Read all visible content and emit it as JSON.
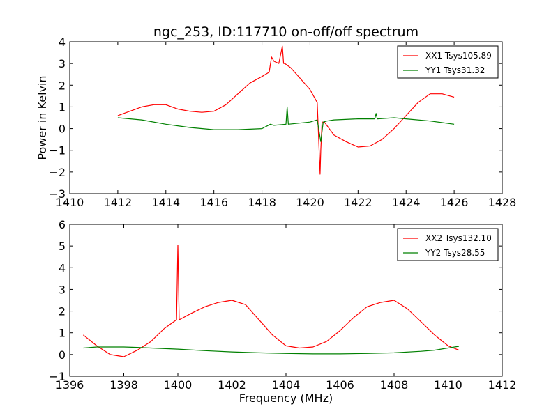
{
  "chart_data": [
    {
      "type": "line",
      "title": "ngc_253, ID:117710 on-off/off spectrum",
      "ylabel": "Power in Kelvin",
      "xlabel": "",
      "xlim": [
        1410,
        1428
      ],
      "ylim": [
        -3,
        4
      ],
      "xticks": [
        1410,
        1412,
        1414,
        1416,
        1418,
        1420,
        1422,
        1424,
        1426,
        1428
      ],
      "yticks": [
        -3,
        -2,
        -1,
        0,
        1,
        2,
        3,
        4
      ],
      "legend_position": "top-right",
      "series": [
        {
          "name": "XX1 Tsys105.89",
          "color": "#ff0000",
          "x": [
            1412.0,
            1412.5,
            1413.0,
            1413.5,
            1414.0,
            1414.5,
            1415.0,
            1415.5,
            1416.0,
            1416.5,
            1417.0,
            1417.5,
            1418.0,
            1418.3,
            1418.4,
            1418.5,
            1418.7,
            1418.85,
            1418.9,
            1418.95,
            1419.2,
            1419.6,
            1420.0,
            1420.3,
            1420.42,
            1420.45,
            1420.5,
            1420.6,
            1420.8,
            1421.0,
            1421.5,
            1422.0,
            1422.5,
            1423.0,
            1423.5,
            1424.0,
            1424.5,
            1425.0,
            1425.5,
            1426.0
          ],
          "y": [
            0.6,
            0.8,
            1.0,
            1.1,
            1.1,
            0.9,
            0.8,
            0.75,
            0.8,
            1.1,
            1.6,
            2.1,
            2.4,
            2.6,
            3.3,
            3.1,
            3.0,
            3.8,
            3.0,
            3.0,
            2.8,
            2.3,
            1.8,
            1.2,
            -2.1,
            -1.0,
            0.3,
            0.3,
            0.0,
            -0.3,
            -0.6,
            -0.85,
            -0.8,
            -0.5,
            0.0,
            0.6,
            1.2,
            1.6,
            1.6,
            1.45
          ]
        },
        {
          "name": "YY1 Tsys31.32",
          "color": "#008000",
          "x": [
            1412.0,
            1413.0,
            1414.0,
            1415.0,
            1416.0,
            1417.0,
            1418.0,
            1418.35,
            1418.5,
            1419.0,
            1419.05,
            1419.1,
            1420.0,
            1420.3,
            1420.45,
            1420.55,
            1420.7,
            1421.0,
            1422.0,
            1422.7,
            1422.75,
            1422.8,
            1423.5,
            1424.0,
            1425.0,
            1426.0
          ],
          "y": [
            0.5,
            0.4,
            0.2,
            0.05,
            -0.05,
            -0.05,
            0.0,
            0.2,
            0.15,
            0.2,
            1.0,
            0.2,
            0.3,
            0.4,
            -0.6,
            0.3,
            0.35,
            0.4,
            0.45,
            0.45,
            0.7,
            0.45,
            0.5,
            0.45,
            0.35,
            0.2
          ]
        }
      ]
    },
    {
      "type": "line",
      "title": "",
      "xlabel": "Frequency (MHz)",
      "ylabel": "",
      "xlim": [
        1396,
        1412
      ],
      "ylim": [
        -1,
        6
      ],
      "xticks": [
        1396,
        1398,
        1400,
        1402,
        1404,
        1406,
        1408,
        1410,
        1412
      ],
      "yticks": [
        -1,
        0,
        1,
        2,
        3,
        4,
        5,
        6
      ],
      "legend_position": "top-right",
      "series": [
        {
          "name": "XX2 Tsys132.10",
          "color": "#ff0000",
          "x": [
            1396.5,
            1397.0,
            1397.5,
            1398.0,
            1398.5,
            1399.0,
            1399.5,
            1399.95,
            1400.0,
            1400.05,
            1400.5,
            1401.0,
            1401.5,
            1402.0,
            1402.5,
            1403.0,
            1403.5,
            1404.0,
            1404.5,
            1405.0,
            1405.5,
            1406.0,
            1406.5,
            1407.0,
            1407.5,
            1408.0,
            1408.5,
            1409.0,
            1409.5,
            1410.0,
            1410.4
          ],
          "y": [
            0.9,
            0.4,
            0.0,
            -0.1,
            0.2,
            0.6,
            1.2,
            1.6,
            5.05,
            1.6,
            1.9,
            2.2,
            2.4,
            2.5,
            2.3,
            1.6,
            0.9,
            0.4,
            0.3,
            0.35,
            0.6,
            1.1,
            1.7,
            2.2,
            2.4,
            2.5,
            2.1,
            1.5,
            0.9,
            0.4,
            0.2
          ]
        },
        {
          "name": "YY2 Tsys28.55",
          "color": "#008000",
          "x": [
            1396.5,
            1397.0,
            1397.5,
            1398.0,
            1398.5,
            1399.0,
            1400.0,
            1401.0,
            1402.0,
            1403.0,
            1404.0,
            1405.0,
            1406.0,
            1407.0,
            1408.0,
            1409.0,
            1409.5,
            1410.0,
            1410.4
          ],
          "y": [
            0.3,
            0.35,
            0.35,
            0.35,
            0.33,
            0.3,
            0.25,
            0.18,
            0.12,
            0.08,
            0.05,
            0.03,
            0.03,
            0.05,
            0.08,
            0.15,
            0.2,
            0.3,
            0.38
          ]
        }
      ]
    }
  ]
}
